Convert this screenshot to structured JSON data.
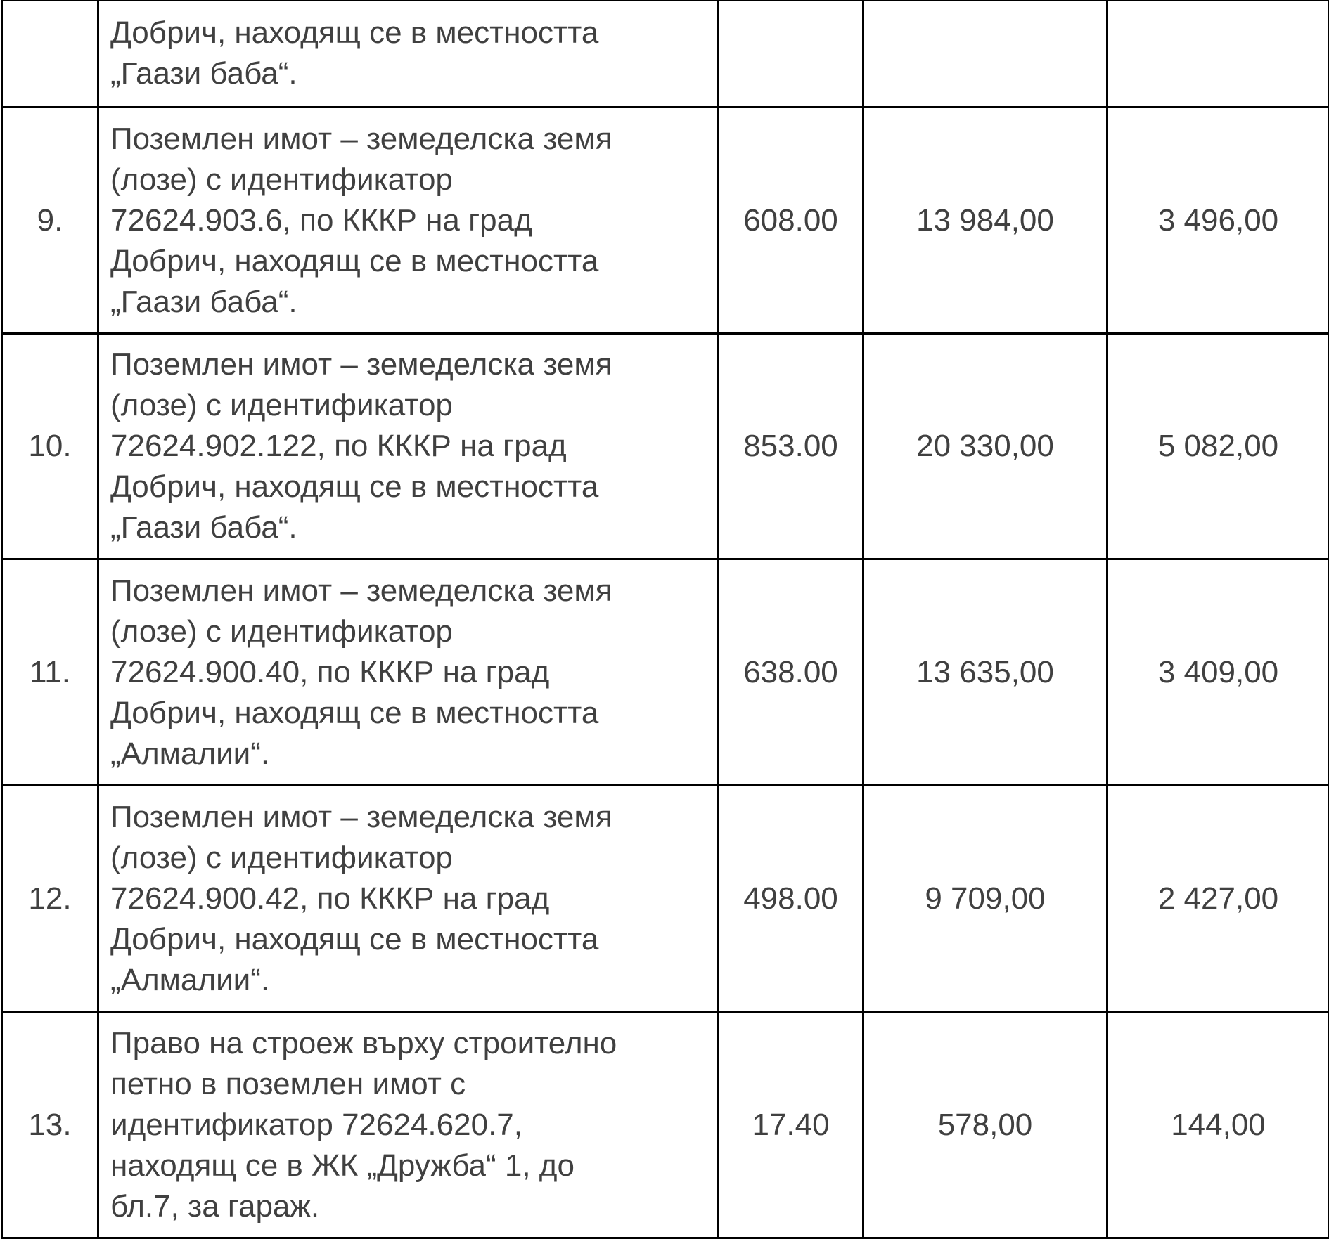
{
  "rows": [
    {
      "no": "",
      "description": [
        "Добрич, находящ се в местността",
        "„Гаази баба“."
      ],
      "area": "",
      "price": "",
      "deposit": ""
    },
    {
      "no": "9.",
      "description": [
        "Поземлен имот – земеделска земя",
        "(лозе) с идентификатор",
        "72624.903.6, по КККР на град",
        "Добрич, находящ се в местността",
        "„Гаази баба“."
      ],
      "area": "608.00",
      "price": "13 984,00",
      "deposit": "3 496,00"
    },
    {
      "no": "10.",
      "description": [
        "Поземлен имот – земеделска земя",
        "(лозе) с идентификатор",
        "72624.902.122, по КККР на град",
        "Добрич, находящ се в местността",
        "„Гаази баба“."
      ],
      "area": "853.00",
      "price": "20 330,00",
      "deposit": "5 082,00"
    },
    {
      "no": "11.",
      "description": [
        "Поземлен имот – земеделска земя",
        "(лозе) с идентификатор",
        "72624.900.40, по КККР на град",
        "Добрич, находящ се в местността",
        "„Алмалии“."
      ],
      "area": "638.00",
      "price": "13 635,00",
      "deposit": "3 409,00"
    },
    {
      "no": "12.",
      "description": [
        "Поземлен имот – земеделска земя",
        "(лозе) с идентификатор",
        "72624.900.42, по КККР на град",
        "Добрич, находящ се в местността",
        "„Алмалии“."
      ],
      "area": "498.00",
      "price": "9 709,00",
      "deposit": "2 427,00"
    },
    {
      "no": "13.",
      "description": [
        "Право на строеж върху строително",
        "петно в поземлен имот с",
        "идентификатор 72624.620.7,",
        "находящ се в ЖК „Дружба“ 1, до",
        "бл.7, за гараж."
      ],
      "area": "17.40",
      "price": "578,00",
      "deposit": "144,00"
    }
  ]
}
